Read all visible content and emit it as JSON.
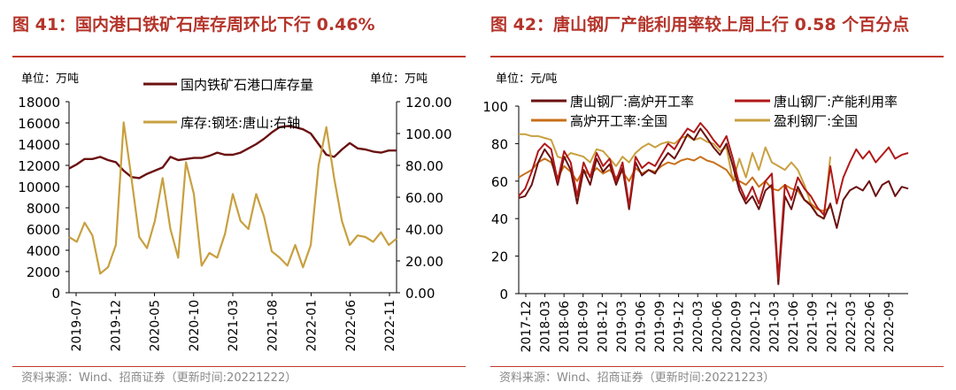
{
  "left": {
    "title": "图 41：国内港口铁矿石库存周环比下行 0.46%",
    "unit_left": "单位：万吨",
    "unit_right": "单位：万吨",
    "source": "资料来源：Wind、招商证券（更新时间:20221222）",
    "colors": {
      "port": "#6b1111",
      "billet": "#c8a040"
    }
  },
  "right": {
    "title": "图 42：唐山钢厂产能利用率较上周上行 0.58 个百分点",
    "unit": "单位：元/吨",
    "source": "资料来源：Wind、招商证券（更新时间:20221223）",
    "colors": {
      "ts_blast": "#6b1111",
      "ts_capacity": "#b01818",
      "nat_blast": "#c8701a",
      "nat_profit": "#c8a040"
    }
  },
  "chart_data": [
    {
      "type": "line",
      "title": "国内港口铁矿石库存周环比下行 0.46%",
      "ylim_left": [
        0,
        18000
      ],
      "yticks_left": [
        "0",
        "2000",
        "4000",
        "6000",
        "8000",
        "10000",
        "12000",
        "14000",
        "16000",
        "18000"
      ],
      "ylim_right": [
        0,
        120
      ],
      "yticks_right": [
        "0.00",
        "20.00",
        "40.00",
        "60.00",
        "80.00",
        "100.00",
        "120.00"
      ],
      "xlim": [
        0,
        42
      ],
      "x_tick_labels": [
        "2019-07",
        "2019-12",
        "2020-05",
        "2020-10",
        "2021-03",
        "2021-08",
        "2022-01",
        "2022-06",
        "2022-11"
      ],
      "series": [
        {
          "name": "国内铁矿石港口库存量",
          "axis": "left",
          "x": [
            0,
            1,
            2,
            3,
            4,
            5,
            6,
            7,
            8,
            9,
            10,
            11,
            12,
            13,
            14,
            15,
            16,
            17,
            18,
            19,
            20,
            21,
            22,
            23,
            24,
            25,
            26,
            27,
            28,
            29,
            30,
            31,
            32,
            33,
            34,
            35,
            36,
            37,
            38,
            39,
            40,
            41,
            42
          ],
          "values": [
            11700,
            12100,
            12600,
            12600,
            12800,
            12500,
            12300,
            11500,
            10900,
            10800,
            11200,
            11500,
            11800,
            12800,
            12500,
            12600,
            12700,
            12700,
            12900,
            13200,
            13000,
            13000,
            13200,
            13600,
            14000,
            14500,
            15100,
            15600,
            15700,
            15600,
            15400,
            15000,
            14000,
            13000,
            12800,
            13500,
            14100,
            13600,
            13500,
            13300,
            13200,
            13400,
            13400
          ]
        },
        {
          "name": "库存:钢坯:唐山:右轴",
          "axis": "right",
          "x": [
            0,
            1,
            2,
            3,
            4,
            5,
            6,
            7,
            8,
            9,
            10,
            11,
            12,
            13,
            14,
            15,
            16,
            17,
            18,
            19,
            20,
            21,
            22,
            23,
            24,
            25,
            26,
            27,
            28,
            29,
            30,
            31,
            32,
            33,
            34,
            35,
            36,
            37,
            38,
            39,
            40,
            41,
            42
          ],
          "values": [
            35,
            32,
            44,
            36,
            12,
            16,
            30,
            107,
            72,
            35,
            28,
            45,
            72,
            40,
            22,
            82,
            62,
            17,
            25,
            22,
            37,
            62,
            45,
            40,
            62,
            48,
            26,
            22,
            17,
            30,
            16,
            30,
            80,
            104,
            72,
            45,
            30,
            36,
            35,
            32,
            38,
            30,
            34
          ]
        }
      ]
    },
    {
      "type": "line",
      "title": "唐山钢厂产能利用率较上周上行 0.58 个百分点",
      "ylim": [
        0,
        100
      ],
      "yticks": [
        "0",
        "20",
        "40",
        "60",
        "80",
        "100"
      ],
      "xlim": [
        0,
        60
      ],
      "x_tick_labels": [
        "2017-12",
        "2018-03",
        "2018-06",
        "2018-09",
        "2018-12",
        "2019-03",
        "2019-06",
        "2019-09",
        "2019-12",
        "2020-03",
        "2020-06",
        "2020-09",
        "2020-12",
        "2021-03",
        "2021-06",
        "2021-09",
        "2021-12",
        "2022-03",
        "2022-06",
        "2022-09"
      ],
      "series": [
        {
          "name": "唐山钢厂:高炉开工率",
          "x": [
            0,
            1,
            2,
            3,
            4,
            5,
            6,
            7,
            8,
            9,
            10,
            11,
            12,
            13,
            14,
            15,
            16,
            17,
            18,
            19,
            20,
            21,
            22,
            23,
            24,
            25,
            26,
            27,
            28,
            29,
            30,
            31,
            32,
            33,
            34,
            35,
            36,
            37,
            38,
            39,
            40,
            41,
            42,
            43,
            44,
            45,
            46,
            47,
            48,
            49,
            50,
            51,
            52,
            53,
            54,
            55,
            56,
            57,
            58,
            59,
            60
          ],
          "values": [
            51,
            52,
            58,
            70,
            77,
            72,
            58,
            73,
            66,
            48,
            66,
            58,
            72,
            65,
            69,
            58,
            67,
            45,
            70,
            63,
            66,
            64,
            70,
            75,
            72,
            78,
            85,
            82,
            88,
            83,
            78,
            74,
            80,
            68,
            55,
            48,
            52,
            45,
            55,
            58,
            5,
            52,
            45,
            57,
            50,
            47,
            42,
            40,
            48,
            35,
            50,
            55,
            57,
            55,
            60,
            52,
            58,
            60,
            52,
            57,
            56
          ]
        },
        {
          "name": "唐山钢厂:产能利用率",
          "x": [
            0,
            1,
            2,
            3,
            4,
            5,
            6,
            7,
            8,
            9,
            10,
            11,
            12,
            13,
            14,
            15,
            16,
            17,
            18,
            19,
            20,
            21,
            22,
            23,
            24,
            25,
            26,
            27,
            28,
            29,
            30,
            31,
            32,
            33,
            34,
            35,
            36,
            37,
            38,
            39,
            40,
            41,
            42,
            43,
            44,
            45,
            46,
            47,
            48,
            49,
            50,
            51,
            52,
            53,
            54,
            55,
            56,
            57,
            58,
            59,
            60
          ],
          "values": [
            52,
            56,
            65,
            76,
            80,
            77,
            60,
            76,
            70,
            52,
            70,
            62,
            75,
            68,
            72,
            60,
            70,
            47,
            73,
            67,
            70,
            68,
            74,
            80,
            77,
            83,
            88,
            86,
            91,
            87,
            82,
            78,
            84,
            72,
            58,
            50,
            57,
            48,
            60,
            64,
            8,
            58,
            50,
            62,
            56,
            52,
            46,
            42,
            68,
            48,
            62,
            70,
            77,
            72,
            76,
            70,
            74,
            78,
            72,
            74,
            75
          ]
        },
        {
          "name": "高炉开工率:全国",
          "x": [
            0,
            1,
            2,
            3,
            4,
            5,
            6,
            7,
            8,
            9,
            10,
            11,
            12,
            13,
            14,
            15,
            16,
            17,
            18,
            19,
            20,
            21,
            22,
            23,
            24,
            25,
            26,
            27,
            28,
            29,
            30,
            31,
            32,
            33,
            34,
            35,
            36,
            37,
            38,
            39,
            40,
            41,
            42,
            43,
            44,
            45,
            46,
            47,
            48
          ],
          "values": [
            62,
            64,
            66,
            70,
            72,
            70,
            62,
            68,
            65,
            60,
            66,
            63,
            67,
            64,
            66,
            62,
            65,
            60,
            67,
            64,
            66,
            65,
            68,
            70,
            69,
            71,
            72,
            71,
            73,
            71,
            70,
            68,
            66,
            61,
            60,
            58,
            62,
            57,
            60,
            56,
            55,
            58,
            56,
            55,
            50,
            48,
            45,
            44,
            46
          ]
        },
        {
          "name": "盈利钢厂:全国",
          "x": [
            0,
            1,
            2,
            3,
            4,
            5,
            6,
            7,
            8,
            9,
            10,
            11,
            12,
            13,
            14,
            15,
            16,
            17,
            18,
            19,
            20,
            21,
            22,
            23,
            24,
            25,
            26,
            27,
            28,
            29,
            30,
            31,
            32,
            33,
            34,
            35,
            36,
            37,
            38,
            39,
            40,
            41,
            42,
            43,
            44,
            45,
            46,
            47,
            48
          ],
          "values": [
            85,
            85,
            84,
            84,
            83,
            82,
            73,
            72,
            75,
            74,
            73,
            70,
            77,
            76,
            72,
            68,
            73,
            70,
            75,
            78,
            80,
            78,
            80,
            81,
            80,
            83,
            84,
            82,
            83,
            81,
            80,
            76,
            78,
            60,
            72,
            62,
            75,
            66,
            78,
            70,
            68,
            66,
            70,
            66,
            58,
            48,
            42,
            40,
            73
          ]
        }
      ]
    }
  ]
}
